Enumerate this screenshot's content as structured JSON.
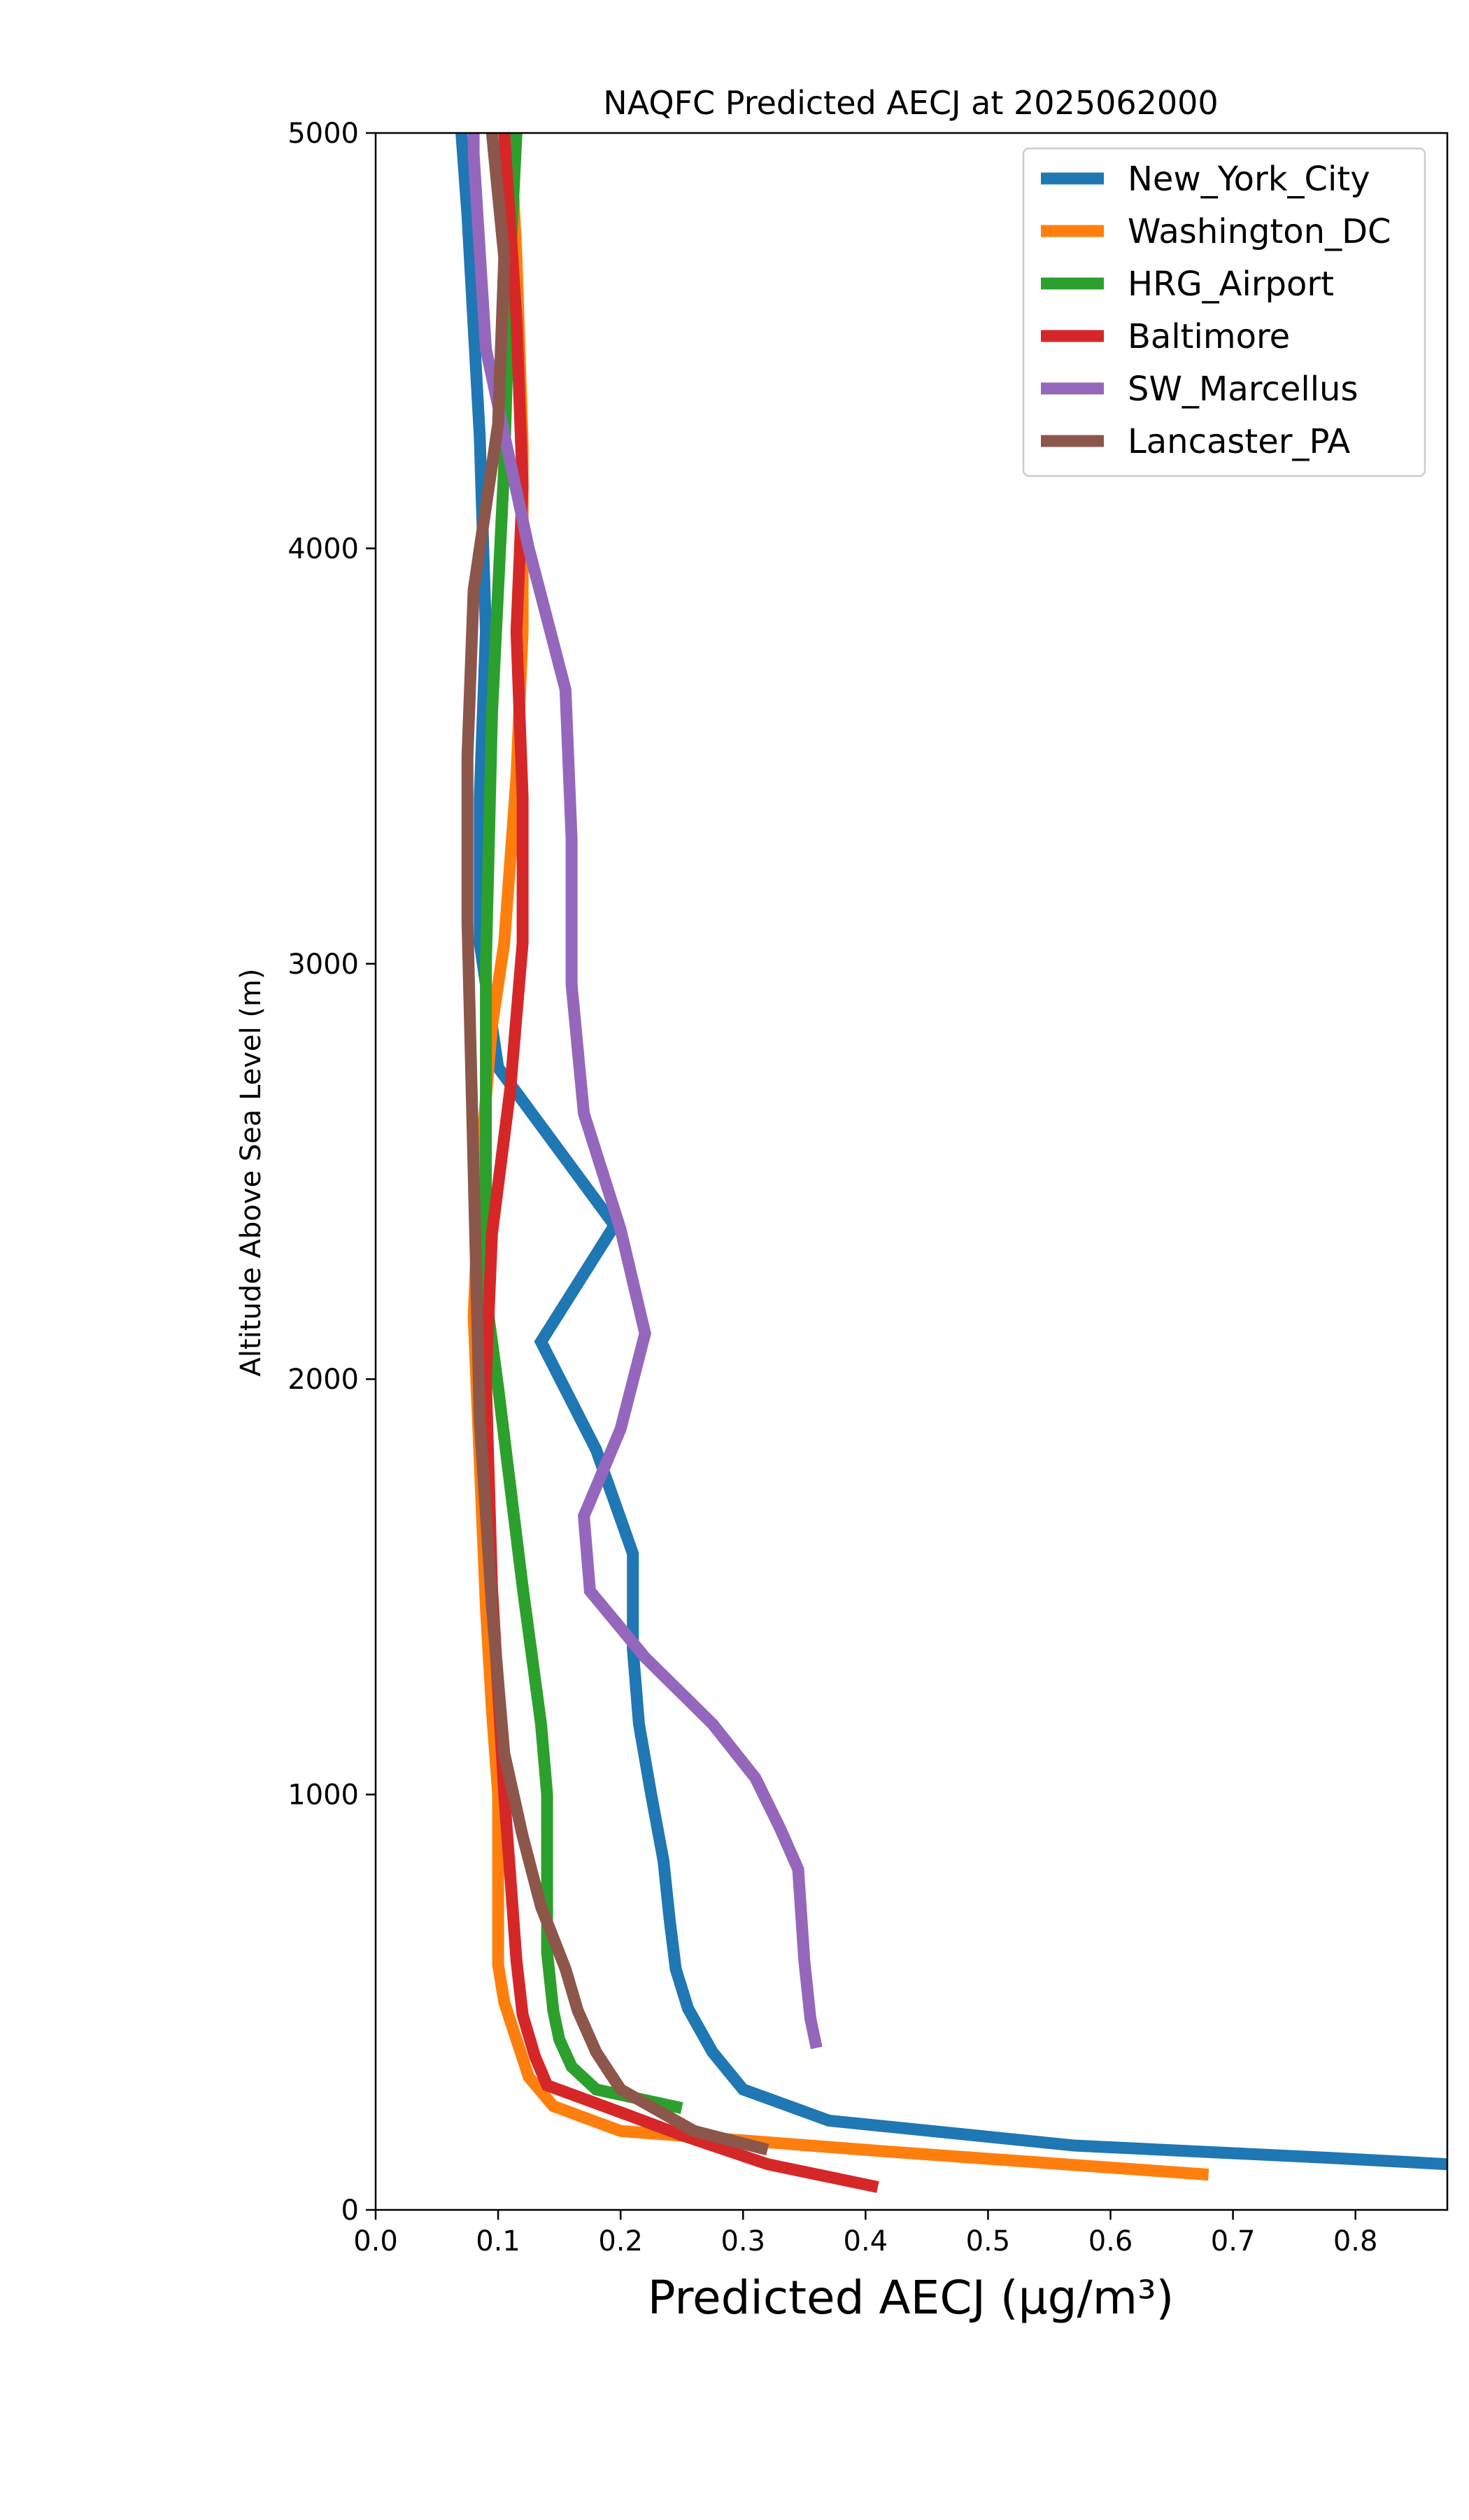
{
  "chart_data": {
    "type": "line",
    "title": "NAQFC Predicted AECJ at 2025062000",
    "xlabel": "Predicted AECJ (μg/m³)",
    "ylabel": "Altitude Above Sea Level (m)",
    "xlim": [
      0.0,
      0.875
    ],
    "ylim": [
      0,
      5000
    ],
    "xticks": [
      "0.0",
      "0.1",
      "0.2",
      "0.3",
      "0.4",
      "0.5",
      "0.6",
      "0.7",
      "0.8"
    ],
    "yticks": [
      "0",
      "1000",
      "2000",
      "3000",
      "4000",
      "5000"
    ],
    "grid": false,
    "legend_position": "top-right",
    "series": [
      {
        "name": "New_York_City",
        "color": "#1f77b4",
        "points": [
          [
            0.875,
            110
          ],
          [
            0.78,
            125
          ],
          [
            0.57,
            155
          ],
          [
            0.37,
            215
          ],
          [
            0.3,
            290
          ],
          [
            0.275,
            380
          ],
          [
            0.255,
            485
          ],
          [
            0.245,
            580
          ],
          [
            0.24,
            700
          ],
          [
            0.235,
            840
          ],
          [
            0.225,
            1000
          ],
          [
            0.215,
            1170
          ],
          [
            0.21,
            1350
          ],
          [
            0.21,
            1580
          ],
          [
            0.18,
            1830
          ],
          [
            0.135,
            2090
          ],
          [
            0.195,
            2370
          ],
          [
            0.1,
            2750
          ],
          [
            0.085,
            3050
          ],
          [
            0.085,
            3400
          ],
          [
            0.09,
            3800
          ],
          [
            0.085,
            4270
          ],
          [
            0.075,
            4800
          ],
          [
            0.07,
            5000
          ]
        ]
      },
      {
        "name": "Washington_DC",
        "color": "#ff7f0e",
        "points": [
          [
            0.68,
            85
          ],
          [
            0.42,
            140
          ],
          [
            0.2,
            190
          ],
          [
            0.145,
            250
          ],
          [
            0.125,
            320
          ],
          [
            0.115,
            410
          ],
          [
            0.105,
            500
          ],
          [
            0.1,
            590
          ],
          [
            0.1,
            700
          ],
          [
            0.1,
            1000
          ],
          [
            0.095,
            1200
          ],
          [
            0.09,
            1450
          ],
          [
            0.085,
            1800
          ],
          [
            0.08,
            2150
          ],
          [
            0.085,
            2500
          ],
          [
            0.095,
            2850
          ],
          [
            0.105,
            3050
          ],
          [
            0.115,
            3450
          ],
          [
            0.12,
            3800
          ],
          [
            0.12,
            4250
          ],
          [
            0.115,
            4700
          ],
          [
            0.11,
            5000
          ]
        ]
      },
      {
        "name": "HRG_Airport",
        "color": "#2ca02c",
        "points": [
          [
            0.25,
            245
          ],
          [
            0.18,
            290
          ],
          [
            0.16,
            345
          ],
          [
            0.15,
            410
          ],
          [
            0.145,
            480
          ],
          [
            0.14,
            620
          ],
          [
            0.14,
            800
          ],
          [
            0.14,
            1000
          ],
          [
            0.135,
            1170
          ],
          [
            0.12,
            1500
          ],
          [
            0.1,
            1980
          ],
          [
            0.09,
            2200
          ],
          [
            0.09,
            3000
          ],
          [
            0.095,
            3600
          ],
          [
            0.105,
            4200
          ],
          [
            0.11,
            4700
          ],
          [
            0.115,
            5000
          ]
        ]
      },
      {
        "name": "Baltimore",
        "color": "#d62728",
        "points": [
          [
            0.41,
            55
          ],
          [
            0.32,
            110
          ],
          [
            0.25,
            180
          ],
          [
            0.2,
            235
          ],
          [
            0.14,
            300
          ],
          [
            0.13,
            370
          ],
          [
            0.12,
            470
          ],
          [
            0.115,
            600
          ],
          [
            0.11,
            800
          ],
          [
            0.105,
            1000
          ],
          [
            0.095,
            1500
          ],
          [
            0.09,
            2000
          ],
          [
            0.095,
            2350
          ],
          [
            0.11,
            2700
          ],
          [
            0.12,
            3050
          ],
          [
            0.12,
            3400
          ],
          [
            0.115,
            3800
          ],
          [
            0.12,
            4150
          ],
          [
            0.115,
            4550
          ],
          [
            0.105,
            5000
          ]
        ]
      },
      {
        "name": "SW_Marcellus",
        "color": "#9467bd",
        "points": [
          [
            0.36,
            390
          ],
          [
            0.355,
            460
          ],
          [
            0.35,
            600
          ],
          [
            0.345,
            820
          ],
          [
            0.33,
            920
          ],
          [
            0.31,
            1040
          ],
          [
            0.275,
            1170
          ],
          [
            0.22,
            1330
          ],
          [
            0.175,
            1490
          ],
          [
            0.17,
            1670
          ],
          [
            0.2,
            1880
          ],
          [
            0.22,
            2110
          ],
          [
            0.2,
            2360
          ],
          [
            0.17,
            2640
          ],
          [
            0.16,
            2950
          ],
          [
            0.16,
            3300
          ],
          [
            0.155,
            3660
          ],
          [
            0.125,
            4000
          ],
          [
            0.09,
            4480
          ],
          [
            0.08,
            4950
          ],
          [
            0.08,
            5000
          ]
        ]
      },
      {
        "name": "Lancaster_PA",
        "color": "#8c564b",
        "points": [
          [
            0.32,
            145
          ],
          [
            0.26,
            190
          ],
          [
            0.2,
            290
          ],
          [
            0.18,
            380
          ],
          [
            0.165,
            480
          ],
          [
            0.155,
            580
          ],
          [
            0.135,
            730
          ],
          [
            0.12,
            900
          ],
          [
            0.105,
            1100
          ],
          [
            0.095,
            1450
          ],
          [
            0.085,
            1900
          ],
          [
            0.08,
            2500
          ],
          [
            0.075,
            3100
          ],
          [
            0.075,
            3500
          ],
          [
            0.08,
            3900
          ],
          [
            0.1,
            4300
          ],
          [
            0.105,
            4700
          ],
          [
            0.095,
            5000
          ]
        ]
      }
    ]
  }
}
